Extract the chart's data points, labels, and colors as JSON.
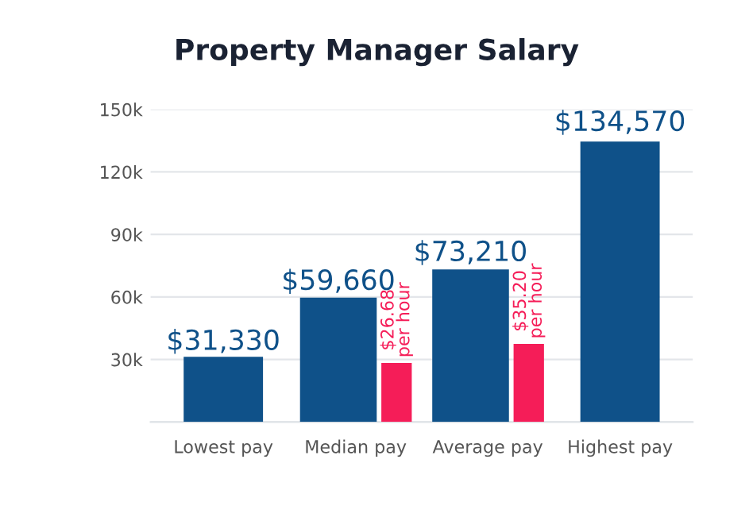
{
  "chart_data": {
    "type": "bar",
    "title": "Property Manager Salary",
    "categories": [
      "Lowest pay",
      "Median pay",
      "Average pay",
      "Highest pay"
    ],
    "series": [
      {
        "color": "#0f5189",
        "values": [
          31330,
          59660,
          73210,
          134570
        ],
        "value_labels": [
          "$31,330",
          "$59,660",
          "$73,210",
          "$134,570"
        ]
      },
      {
        "color": "#f51d58",
        "axis": "y2",
        "values": [
          null,
          26.68,
          35.2,
          null
        ],
        "value_labels": [
          null,
          "$26.68\nper hour",
          "$35.20\nper hour",
          null
        ]
      }
    ],
    "ylim": [
      0,
      150000
    ],
    "y2lim": [
      0,
      141
    ],
    "yticks": [
      {
        "value": 0,
        "label": null
      },
      {
        "value": 30000,
        "label": "30k"
      },
      {
        "value": 60000,
        "label": "60k"
      },
      {
        "value": 90000,
        "label": "90k"
      },
      {
        "value": 120000,
        "label": "120k"
      },
      {
        "value": 150000,
        "label": "150k"
      }
    ],
    "grid": "y",
    "legend": false
  }
}
